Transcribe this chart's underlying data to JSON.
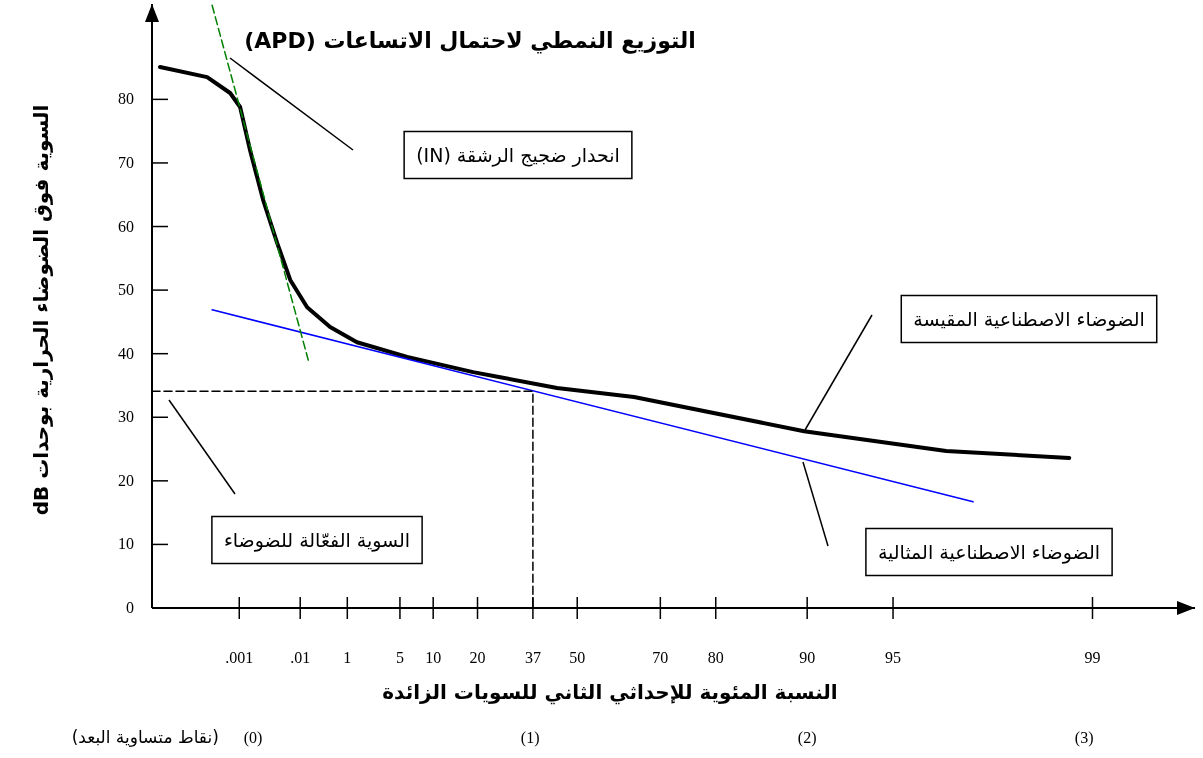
{
  "chart_data": {
    "type": "line",
    "title": "التوزيع النمطي لاحتمال الاتساعات (APD)",
    "xlabel": "(نقاط متساوية البعد)",
    "ylabel": "السوية فوق الضوضاء الحرارية بوحدات dB",
    "xlim": [
      -0.365,
      3.4
    ],
    "ylim": [
      0,
      95
    ],
    "xticks": [
      {
        "value": 0,
        "label": "(0)"
      },
      {
        "value": 1,
        "label": "(1)"
      },
      {
        "value": 2,
        "label": "(2)"
      },
      {
        "value": 3,
        "label": "(3)"
      }
    ],
    "yticks": [
      0,
      10,
      20,
      30,
      40,
      50,
      60,
      70,
      80
    ],
    "series": [
      {
        "color": "#000000",
        "x": [
          -0.336,
          -0.166,
          -0.083,
          -0.047,
          -0.011,
          0.036,
          0.087,
          0.134,
          0.195,
          0.278,
          0.375,
          0.556,
          0.794,
          0.892,
          1.097,
          1.375,
          1.989,
          2.502,
          2.946
        ],
        "values": [
          85.1,
          83.5,
          81.0,
          78.8,
          72.0,
          64.2,
          57.4,
          51.6,
          47.3,
          44.2,
          41.8,
          39.5,
          37.1,
          36.3,
          34.6,
          33.2,
          27.8,
          24.7,
          23.6
        ]
      },
      {
        "color": "#0000ff",
        "x": [
          -0.148,
          2.599
        ],
        "values": [
          46.9,
          16.7
        ]
      },
      {
        "color": "#008000",
        "line_style": "dashed",
        "x": [
          -0.148,
          0.199
        ],
        "values": [
          94.8,
          39.0
        ]
      },
      {
        "color": "#000000",
        "line_style": "dashed",
        "x": [
          -0.365,
          1.01,
          1.01
        ],
        "values": [
          34.1,
          34.1,
          0
        ]
      }
    ],
    "annotations": [
      "انحدار ضجيج الرشقة (IN)",
      "السوية الفعّالة للضوضاء",
      "الضوضاء الاصطناعية المقيسة",
      "الضوضاء الاصطناعية المثالية",
      "النسبة المئوية للإحداثي الثاني للسويات الزائدة",
      ".001",
      ".01",
      "1",
      "5",
      "10",
      "20",
      "37",
      "50",
      "70",
      "80",
      "90",
      "95",
      "99"
    ]
  }
}
